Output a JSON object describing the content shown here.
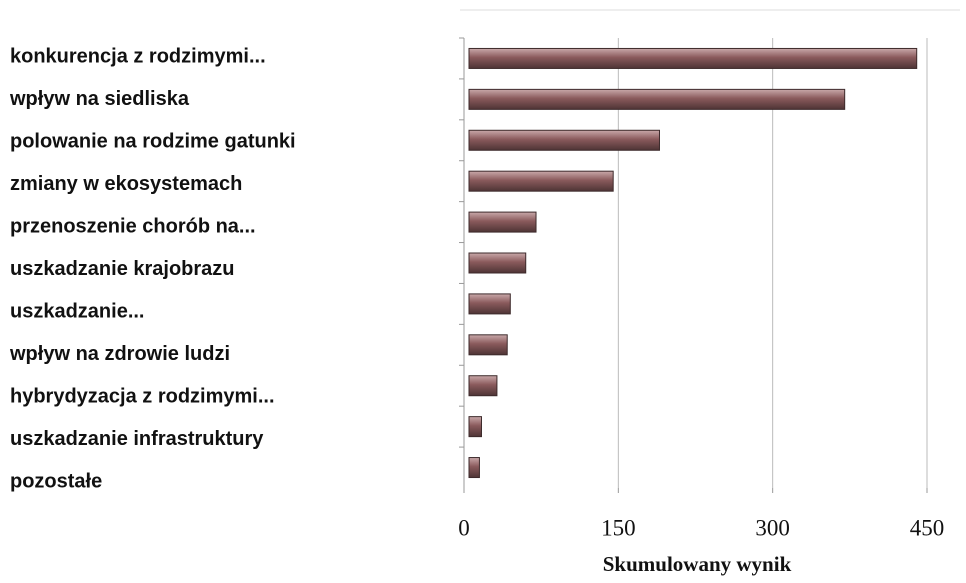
{
  "chart_data": {
    "type": "bar",
    "orientation": "horizontal",
    "x_label": "Skumulowany wynik",
    "categories": [
      "konkurencja z rodzimymi...",
      "wpływ na siedliska",
      "polowanie na rodzime gatunki",
      "zmiany w ekosystemach",
      "przenoszenie chorób na...",
      "uszkadzanie krajobrazu",
      "uszkadzanie...",
      "wpływ na zdrowie ludzi",
      "hybrydyzacja z rodzimymi...",
      "uszkadzanie infrastruktury",
      "pozostałe"
    ],
    "values": [
      440,
      370,
      190,
      145,
      70,
      60,
      45,
      42,
      32,
      17,
      15
    ],
    "color": "#8a5a5c",
    "xlim": [
      0,
      450
    ],
    "xticks": [
      0,
      150,
      300,
      450
    ],
    "grid": true
  }
}
